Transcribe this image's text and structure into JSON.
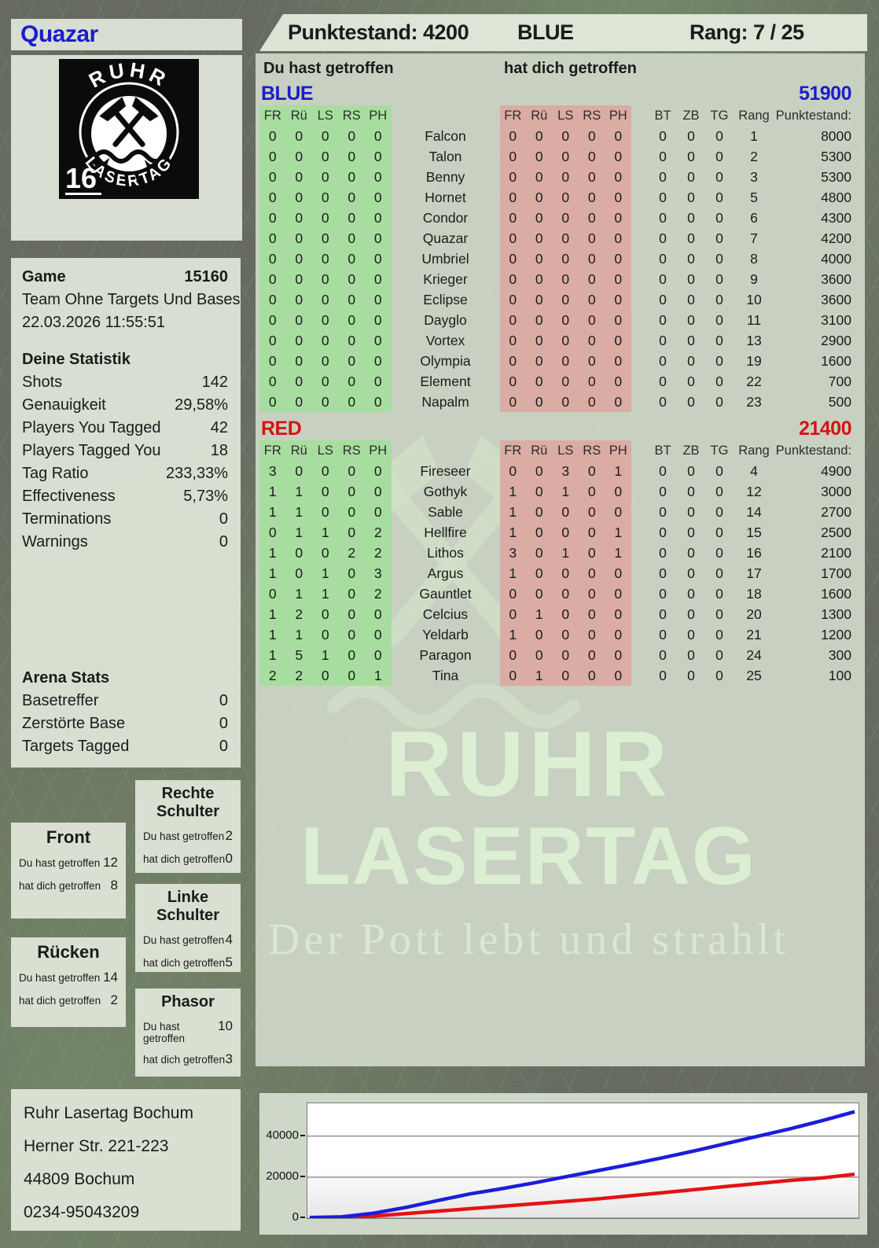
{
  "header": {
    "player": "Quazar",
    "score": "Punktestand: 4200",
    "team": "BLUE",
    "rank": "Rang: 7 / 25"
  },
  "logo": {
    "arc_top": "RUHR",
    "arc_bottom": "LASERTAG",
    "badge": "16"
  },
  "game": {
    "label": "Game",
    "number": "15160",
    "mode": "Team Ohne Targets Und Bases",
    "datetime": "22.03.2026 11:55:51"
  },
  "stats": {
    "title": "Deine Statistik",
    "rows": [
      {
        "label": "Shots",
        "value": "142"
      },
      {
        "label": "Genauigkeit",
        "value": "29,58%"
      },
      {
        "label": "Players You Tagged",
        "value": "42"
      },
      {
        "label": "Players Tagged You",
        "value": "18"
      },
      {
        "label": "Tag Ratio",
        "value": "233,33%"
      },
      {
        "label": "Effectiveness",
        "value": "5,73%"
      },
      {
        "label": "Terminations",
        "value": "0"
      },
      {
        "label": "Warnings",
        "value": "0"
      }
    ]
  },
  "arena": {
    "title": "Arena Stats",
    "rows": [
      {
        "label": "Basetreffer",
        "value": "0"
      },
      {
        "label": "Zerstörte Base",
        "value": "0"
      },
      {
        "label": "Targets Tagged",
        "value": "0"
      }
    ]
  },
  "hit_labels": {
    "you": "Du hast getroffen",
    "them": "hat dich getroffen"
  },
  "zones": [
    {
      "id": "front",
      "title": "Front",
      "you": "12",
      "them": "8"
    },
    {
      "id": "ruecken",
      "title": "Rücken",
      "you": "14",
      "them": "2"
    },
    {
      "id": "rechte",
      "title": "Rechte Schulter",
      "you": "2",
      "them": "0"
    },
    {
      "id": "linke",
      "title": "Linke Schulter",
      "you": "4",
      "them": "5"
    },
    {
      "id": "phasor",
      "title": "Phasor",
      "you": "10",
      "them": "3"
    }
  ],
  "table": {
    "hit_cols": [
      "FR",
      "Rü",
      "LS",
      "RS",
      "PH"
    ],
    "extra_cols": [
      "BT",
      "ZB",
      "TG",
      "Rang",
      "Punktestand:"
    ]
  },
  "teams": [
    {
      "name": "BLUE",
      "color": "#1c1ccd",
      "total": "51900",
      "rows": [
        {
          "you": [
            "0",
            "0",
            "0",
            "0",
            "0"
          ],
          "name": "Falcon",
          "them": [
            "0",
            "0",
            "0",
            "0",
            "0"
          ],
          "extra": [
            "0",
            "0",
            "0",
            "1",
            "8000"
          ]
        },
        {
          "you": [
            "0",
            "0",
            "0",
            "0",
            "0"
          ],
          "name": "Talon",
          "them": [
            "0",
            "0",
            "0",
            "0",
            "0"
          ],
          "extra": [
            "0",
            "0",
            "0",
            "2",
            "5300"
          ]
        },
        {
          "you": [
            "0",
            "0",
            "0",
            "0",
            "0"
          ],
          "name": "Benny",
          "them": [
            "0",
            "0",
            "0",
            "0",
            "0"
          ],
          "extra": [
            "0",
            "0",
            "0",
            "3",
            "5300"
          ]
        },
        {
          "you": [
            "0",
            "0",
            "0",
            "0",
            "0"
          ],
          "name": "Hornet",
          "them": [
            "0",
            "0",
            "0",
            "0",
            "0"
          ],
          "extra": [
            "0",
            "0",
            "0",
            "5",
            "4800"
          ]
        },
        {
          "you": [
            "0",
            "0",
            "0",
            "0",
            "0"
          ],
          "name": "Condor",
          "them": [
            "0",
            "0",
            "0",
            "0",
            "0"
          ],
          "extra": [
            "0",
            "0",
            "0",
            "6",
            "4300"
          ]
        },
        {
          "you": [
            "0",
            "0",
            "0",
            "0",
            "0"
          ],
          "name": "Quazar",
          "them": [
            "0",
            "0",
            "0",
            "0",
            "0"
          ],
          "extra": [
            "0",
            "0",
            "0",
            "7",
            "4200"
          ]
        },
        {
          "you": [
            "0",
            "0",
            "0",
            "0",
            "0"
          ],
          "name": "Umbriel",
          "them": [
            "0",
            "0",
            "0",
            "0",
            "0"
          ],
          "extra": [
            "0",
            "0",
            "0",
            "8",
            "4000"
          ]
        },
        {
          "you": [
            "0",
            "0",
            "0",
            "0",
            "0"
          ],
          "name": "Krieger",
          "them": [
            "0",
            "0",
            "0",
            "0",
            "0"
          ],
          "extra": [
            "0",
            "0",
            "0",
            "9",
            "3600"
          ]
        },
        {
          "you": [
            "0",
            "0",
            "0",
            "0",
            "0"
          ],
          "name": "Eclipse",
          "them": [
            "0",
            "0",
            "0",
            "0",
            "0"
          ],
          "extra": [
            "0",
            "0",
            "0",
            "10",
            "3600"
          ]
        },
        {
          "you": [
            "0",
            "0",
            "0",
            "0",
            "0"
          ],
          "name": "Dayglo",
          "them": [
            "0",
            "0",
            "0",
            "0",
            "0"
          ],
          "extra": [
            "0",
            "0",
            "0",
            "11",
            "3100"
          ]
        },
        {
          "you": [
            "0",
            "0",
            "0",
            "0",
            "0"
          ],
          "name": "Vortex",
          "them": [
            "0",
            "0",
            "0",
            "0",
            "0"
          ],
          "extra": [
            "0",
            "0",
            "0",
            "13",
            "2900"
          ]
        },
        {
          "you": [
            "0",
            "0",
            "0",
            "0",
            "0"
          ],
          "name": "Olympia",
          "them": [
            "0",
            "0",
            "0",
            "0",
            "0"
          ],
          "extra": [
            "0",
            "0",
            "0",
            "19",
            "1600"
          ]
        },
        {
          "you": [
            "0",
            "0",
            "0",
            "0",
            "0"
          ],
          "name": "Element",
          "them": [
            "0",
            "0",
            "0",
            "0",
            "0"
          ],
          "extra": [
            "0",
            "0",
            "0",
            "22",
            "700"
          ]
        },
        {
          "you": [
            "0",
            "0",
            "0",
            "0",
            "0"
          ],
          "name": "Napalm",
          "them": [
            "0",
            "0",
            "0",
            "0",
            "0"
          ],
          "extra": [
            "0",
            "0",
            "0",
            "23",
            "500"
          ]
        }
      ]
    },
    {
      "name": "RED",
      "color": "#d41414",
      "total": "21400",
      "rows": [
        {
          "you": [
            "3",
            "0",
            "0",
            "0",
            "0"
          ],
          "name": "Fireseer",
          "them": [
            "0",
            "0",
            "3",
            "0",
            "1"
          ],
          "extra": [
            "0",
            "0",
            "0",
            "4",
            "4900"
          ]
        },
        {
          "you": [
            "1",
            "1",
            "0",
            "0",
            "0"
          ],
          "name": "Gothyk",
          "them": [
            "1",
            "0",
            "1",
            "0",
            "0"
          ],
          "extra": [
            "0",
            "0",
            "0",
            "12",
            "3000"
          ]
        },
        {
          "you": [
            "1",
            "1",
            "0",
            "0",
            "0"
          ],
          "name": "Sable",
          "them": [
            "1",
            "0",
            "0",
            "0",
            "0"
          ],
          "extra": [
            "0",
            "0",
            "0",
            "14",
            "2700"
          ]
        },
        {
          "you": [
            "0",
            "1",
            "1",
            "0",
            "2"
          ],
          "name": "Hellfire",
          "them": [
            "1",
            "0",
            "0",
            "0",
            "1"
          ],
          "extra": [
            "0",
            "0",
            "0",
            "15",
            "2500"
          ]
        },
        {
          "you": [
            "1",
            "0",
            "0",
            "2",
            "2"
          ],
          "name": "Lithos",
          "them": [
            "3",
            "0",
            "1",
            "0",
            "1"
          ],
          "extra": [
            "0",
            "0",
            "0",
            "16",
            "2100"
          ]
        },
        {
          "you": [
            "1",
            "0",
            "1",
            "0",
            "3"
          ],
          "name": "Argus",
          "them": [
            "1",
            "0",
            "0",
            "0",
            "0"
          ],
          "extra": [
            "0",
            "0",
            "0",
            "17",
            "1700"
          ]
        },
        {
          "you": [
            "0",
            "1",
            "1",
            "0",
            "2"
          ],
          "name": "Gauntlet",
          "them": [
            "0",
            "0",
            "0",
            "0",
            "0"
          ],
          "extra": [
            "0",
            "0",
            "0",
            "18",
            "1600"
          ]
        },
        {
          "you": [
            "1",
            "2",
            "0",
            "0",
            "0"
          ],
          "name": "Celcius",
          "them": [
            "0",
            "1",
            "0",
            "0",
            "0"
          ],
          "extra": [
            "0",
            "0",
            "0",
            "20",
            "1300"
          ]
        },
        {
          "you": [
            "1",
            "1",
            "0",
            "0",
            "0"
          ],
          "name": "Yeldarb",
          "them": [
            "1",
            "0",
            "0",
            "0",
            "0"
          ],
          "extra": [
            "0",
            "0",
            "0",
            "21",
            "1200"
          ]
        },
        {
          "you": [
            "1",
            "5",
            "1",
            "0",
            "0"
          ],
          "name": "Paragon",
          "them": [
            "0",
            "0",
            "0",
            "0",
            "0"
          ],
          "extra": [
            "0",
            "0",
            "0",
            "24",
            "300"
          ]
        },
        {
          "you": [
            "2",
            "2",
            "0",
            "0",
            "1"
          ],
          "name": "Tina",
          "them": [
            "0",
            "1",
            "0",
            "0",
            "0"
          ],
          "extra": [
            "0",
            "0",
            "0",
            "25",
            "100"
          ]
        }
      ]
    }
  ],
  "watermark": {
    "line1": "RUHR",
    "line2": "LASERTAG",
    "slogan": "Der Pott lebt und strahlt"
  },
  "address": {
    "lines": [
      "Ruhr Lasertag Bochum",
      "Herner Str. 221-223",
      "44809 Bochum",
      "0234-95043209"
    ]
  },
  "chart_data": {
    "type": "line",
    "title": "",
    "xlabel": "",
    "ylabel": "",
    "yticks": [
      0,
      20000,
      40000
    ],
    "ylim": [
      0,
      56000
    ],
    "grid": true,
    "legend_position": "none",
    "series": [
      {
        "name": "BLUE",
        "color": "#1c1cdc",
        "values": [
          300,
          600,
          2400,
          5200,
          8600,
          11800,
          14400,
          17200,
          20200,
          23200,
          26200,
          29400,
          32800,
          36400,
          40000,
          43600,
          47600,
          51900
        ]
      },
      {
        "name": "RED",
        "color": "#e41212",
        "values": [
          100,
          300,
          1000,
          2200,
          3400,
          4600,
          5800,
          7000,
          8200,
          9400,
          10900,
          12400,
          13900,
          15400,
          16900,
          18400,
          19600,
          21400
        ]
      }
    ]
  }
}
